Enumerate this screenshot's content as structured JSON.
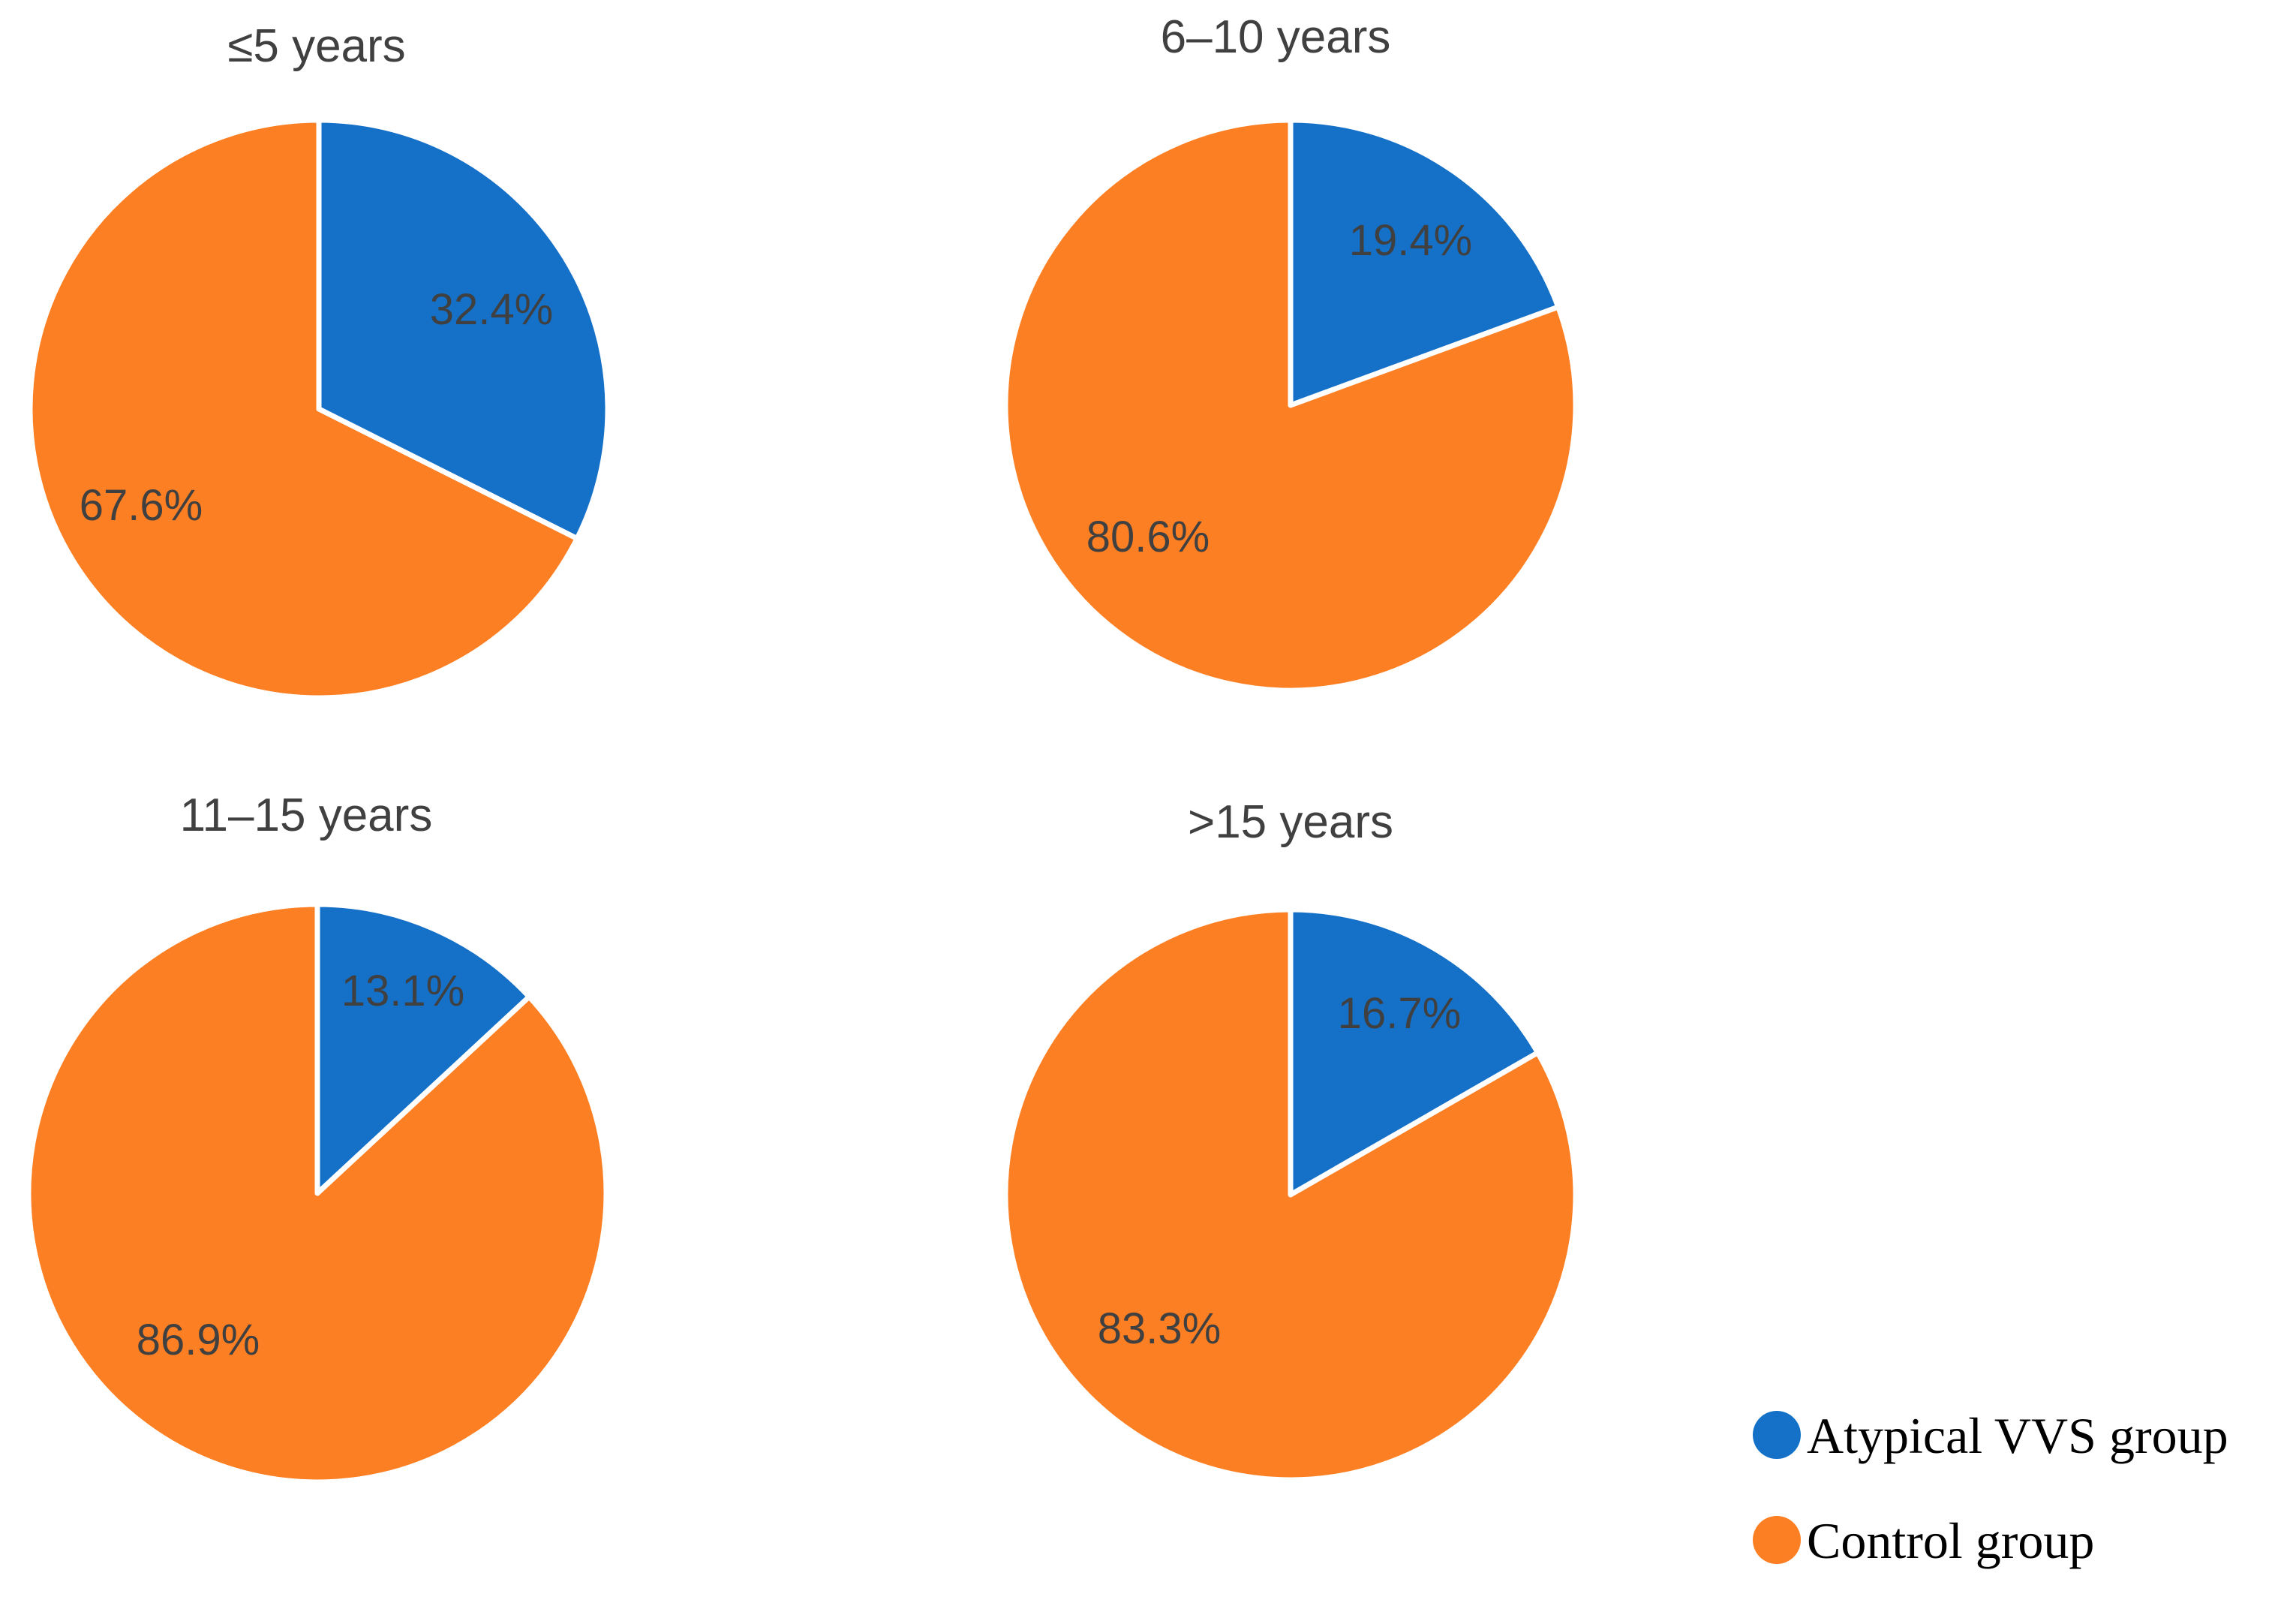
{
  "chart_data": [
    {
      "type": "pie",
      "title": "≤5 years",
      "categories": [
        "Atypical VVS group",
        "Control group"
      ],
      "values": [
        32.4,
        67.6
      ],
      "data_labels": [
        "32.4%",
        "67.6%"
      ]
    },
    {
      "type": "pie",
      "title": "6–10 years",
      "categories": [
        "Atypical VVS group",
        "Control group"
      ],
      "values": [
        19.4,
        80.6
      ],
      "data_labels": [
        "19.4%",
        "80.6%"
      ]
    },
    {
      "type": "pie",
      "title": "11–15 years",
      "categories": [
        "Atypical VVS group",
        "Control group"
      ],
      "values": [
        13.1,
        86.9
      ],
      "data_labels": [
        "13.1%",
        "86.9%"
      ]
    },
    {
      "type": "pie",
      "title": ">15 years",
      "categories": [
        "Atypical VVS group",
        "Control group"
      ],
      "values": [
        16.7,
        83.3
      ],
      "data_labels": [
        "16.7%",
        "83.3%"
      ]
    }
  ],
  "legend": {
    "placement": "bottom-right",
    "items": [
      {
        "label": "Atypical VVS group",
        "color": "#1570c8"
      },
      {
        "label": "Control group",
        "color": "#fd7f23"
      }
    ]
  }
}
